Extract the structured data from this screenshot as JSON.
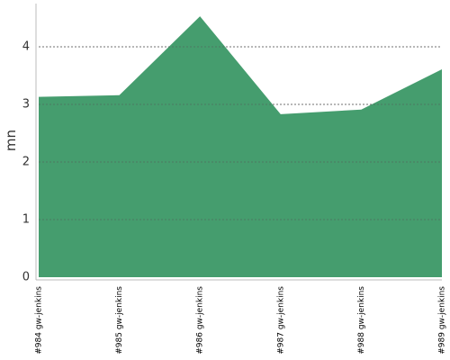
{
  "chart_data": {
    "type": "area",
    "y_label": "mn",
    "categories": [
      "#984 gw-jenkins",
      "#985 gw-jenkins",
      "#986 gw-jenkins",
      "#987 gw-jenkins",
      "#988 gw-jenkins",
      "#989 gw-jenkins"
    ],
    "values": [
      3.13,
      3.16,
      4.53,
      2.83,
      2.91,
      3.61
    ],
    "color": "#459d6e",
    "ylim": [
      0,
      4.75
    ],
    "yticks": [
      0,
      1,
      2,
      3,
      4
    ],
    "grid": true
  }
}
